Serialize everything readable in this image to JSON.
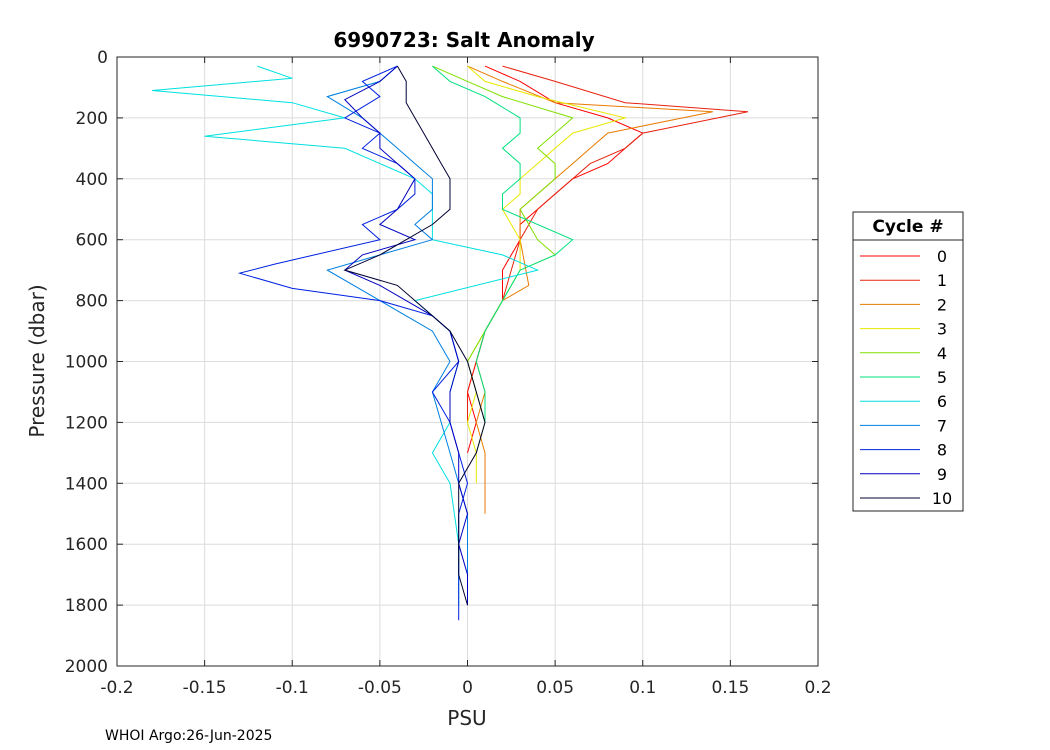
{
  "chart_data": {
    "type": "line",
    "title": "6990723: Salt Anomaly",
    "xlabel": "PSU",
    "ylabel": "Pressure (dbar)",
    "xlim": [
      -0.2,
      0.2
    ],
    "ylim": [
      0,
      2000
    ],
    "y_reversed": true,
    "xticks": [
      "-0.2",
      "-0.15",
      "-0.1",
      "-0.05",
      "0",
      "0.05",
      "0.1",
      "0.15",
      "0.2"
    ],
    "yticks": [
      "0",
      "200",
      "400",
      "600",
      "800",
      "1000",
      "1200",
      "1400",
      "1600",
      "1800",
      "2000"
    ],
    "grid": true,
    "legend": {
      "title": "Cycle #",
      "placement": "right"
    },
    "footer": "WHOI Argo:26-Jun-2025",
    "series": [
      {
        "name": "0",
        "color": "#ff0000",
        "points": [
          [
            0.01,
            30
          ],
          [
            0.03,
            80
          ],
          [
            0.05,
            150
          ],
          [
            0.08,
            200
          ],
          [
            0.1,
            250
          ],
          [
            0.09,
            300
          ],
          [
            0.08,
            350
          ],
          [
            0.06,
            400
          ],
          [
            0.05,
            450
          ],
          [
            0.04,
            500
          ],
          [
            0.03,
            550
          ],
          [
            0.03,
            600
          ],
          [
            0.02,
            700
          ],
          [
            0.02,
            800
          ],
          [
            0.01,
            900
          ],
          [
            0.005,
            1000
          ],
          [
            0.0,
            1100
          ],
          [
            0.005,
            1200
          ],
          [
            0.0,
            1300
          ]
        ]
      },
      {
        "name": "1",
        "color": "#e8220f",
        "points": [
          [
            0.02,
            30
          ],
          [
            0.05,
            80
          ],
          [
            0.09,
            150
          ],
          [
            0.16,
            180
          ],
          [
            0.1,
            250
          ],
          [
            0.09,
            300
          ],
          [
            0.07,
            350
          ],
          [
            0.06,
            400
          ],
          [
            0.05,
            450
          ],
          [
            0.04,
            500
          ],
          [
            0.03,
            600
          ],
          [
            0.025,
            700
          ],
          [
            0.02,
            800
          ],
          [
            0.01,
            900
          ],
          [
            0.005,
            1000
          ],
          [
            0.0,
            1100
          ],
          [
            0.0,
            1200
          ]
        ]
      },
      {
        "name": "2",
        "color": "#e87a00",
        "points": [
          [
            0.0,
            30
          ],
          [
            0.02,
            80
          ],
          [
            0.05,
            150
          ],
          [
            0.14,
            180
          ],
          [
            0.08,
            250
          ],
          [
            0.07,
            300
          ],
          [
            0.06,
            350
          ],
          [
            0.05,
            400
          ],
          [
            0.04,
            450
          ],
          [
            0.03,
            500
          ],
          [
            0.03,
            600
          ],
          [
            0.035,
            750
          ],
          [
            0.02,
            800
          ],
          [
            0.01,
            900
          ],
          [
            0.005,
            1000
          ],
          [
            0.01,
            1100
          ],
          [
            0.005,
            1200
          ],
          [
            0.01,
            1300
          ],
          [
            0.01,
            1400
          ],
          [
            0.01,
            1500
          ]
        ]
      },
      {
        "name": "3",
        "color": "#e8e800",
        "points": [
          [
            0.0,
            30
          ],
          [
            0.01,
            80
          ],
          [
            0.04,
            130
          ],
          [
            0.09,
            200
          ],
          [
            0.06,
            250
          ],
          [
            0.05,
            300
          ],
          [
            0.04,
            350
          ],
          [
            0.03,
            400
          ],
          [
            0.03,
            450
          ],
          [
            0.02,
            500
          ],
          [
            0.03,
            600
          ],
          [
            0.03,
            700
          ],
          [
            0.02,
            800
          ],
          [
            0.01,
            900
          ],
          [
            0.0,
            1000
          ],
          [
            0.005,
            1100
          ],
          [
            0.0,
            1200
          ],
          [
            0.005,
            1300
          ],
          [
            0.005,
            1400
          ]
        ]
      },
      {
        "name": "4",
        "color": "#7fe000",
        "points": [
          [
            -0.02,
            30
          ],
          [
            0.0,
            80
          ],
          [
            0.02,
            130
          ],
          [
            0.06,
            200
          ],
          [
            0.05,
            250
          ],
          [
            0.04,
            300
          ],
          [
            0.05,
            350
          ],
          [
            0.05,
            400
          ],
          [
            0.04,
            450
          ],
          [
            0.03,
            500
          ],
          [
            0.04,
            600
          ],
          [
            0.05,
            650
          ],
          [
            0.03,
            700
          ],
          [
            0.02,
            800
          ],
          [
            0.01,
            900
          ],
          [
            0.0,
            1000
          ],
          [
            0.005,
            1100
          ],
          [
            0.01,
            1200
          ],
          [
            0.005,
            1300
          ]
        ]
      },
      {
        "name": "5",
        "color": "#00e07f",
        "points": [
          [
            -0.02,
            30
          ],
          [
            -0.01,
            80
          ],
          [
            0.01,
            130
          ],
          [
            0.03,
            200
          ],
          [
            0.03,
            250
          ],
          [
            0.02,
            300
          ],
          [
            0.03,
            350
          ],
          [
            0.03,
            400
          ],
          [
            0.02,
            450
          ],
          [
            0.02,
            500
          ],
          [
            0.06,
            600
          ],
          [
            0.05,
            650
          ],
          [
            0.03,
            700
          ],
          [
            0.02,
            800
          ],
          [
            0.01,
            900
          ],
          [
            0.005,
            1000
          ],
          [
            0.01,
            1100
          ],
          [
            0.01,
            1200
          ]
        ]
      },
      {
        "name": "6",
        "color": "#00e0e0",
        "points": [
          [
            -0.12,
            30
          ],
          [
            -0.1,
            70
          ],
          [
            -0.18,
            110
          ],
          [
            -0.1,
            150
          ],
          [
            -0.07,
            200
          ],
          [
            -0.15,
            260
          ],
          [
            -0.07,
            300
          ],
          [
            -0.05,
            350
          ],
          [
            -0.03,
            400
          ],
          [
            -0.02,
            450
          ],
          [
            -0.02,
            500
          ],
          [
            -0.02,
            600
          ],
          [
            0.02,
            650
          ],
          [
            0.04,
            700
          ],
          [
            -0.03,
            800
          ],
          [
            -0.01,
            900
          ],
          [
            -0.005,
            1000
          ],
          [
            -0.01,
            1100
          ],
          [
            -0.01,
            1200
          ],
          [
            -0.02,
            1300
          ],
          [
            -0.01,
            1400
          ],
          [
            -0.005,
            1600
          ],
          [
            -0.005,
            1800
          ]
        ]
      },
      {
        "name": "7",
        "color": "#007fe0",
        "points": [
          [
            -0.04,
            30
          ],
          [
            -0.05,
            80
          ],
          [
            -0.08,
            130
          ],
          [
            -0.06,
            200
          ],
          [
            -0.05,
            250
          ],
          [
            -0.04,
            300
          ],
          [
            -0.03,
            350
          ],
          [
            -0.02,
            400
          ],
          [
            -0.02,
            450
          ],
          [
            -0.02,
            500
          ],
          [
            -0.03,
            550
          ],
          [
            -0.02,
            600
          ],
          [
            -0.05,
            650
          ],
          [
            -0.08,
            700
          ],
          [
            -0.05,
            800
          ],
          [
            -0.02,
            900
          ],
          [
            -0.01,
            1000
          ],
          [
            -0.02,
            1100
          ],
          [
            -0.015,
            1200
          ],
          [
            -0.01,
            1300
          ],
          [
            -0.005,
            1400
          ],
          [
            0.0,
            1500
          ],
          [
            0.0,
            1600
          ],
          [
            0.0,
            1800
          ]
        ]
      },
      {
        "name": "8",
        "color": "#0020e0",
        "points": [
          [
            -0.04,
            30
          ],
          [
            -0.06,
            80
          ],
          [
            -0.05,
            130
          ],
          [
            -0.07,
            200
          ],
          [
            -0.05,
            250
          ],
          [
            -0.06,
            300
          ],
          [
            -0.04,
            350
          ],
          [
            -0.03,
            400
          ],
          [
            -0.03,
            450
          ],
          [
            -0.04,
            500
          ],
          [
            -0.06,
            550
          ],
          [
            -0.05,
            600
          ],
          [
            -0.11,
            680
          ],
          [
            -0.13,
            710
          ],
          [
            -0.1,
            760
          ],
          [
            -0.05,
            800
          ],
          [
            -0.02,
            850
          ],
          [
            -0.01,
            900
          ],
          [
            -0.005,
            1000
          ],
          [
            -0.02,
            1100
          ],
          [
            -0.01,
            1200
          ],
          [
            -0.005,
            1300
          ],
          [
            0.0,
            1400
          ],
          [
            -0.005,
            1500
          ],
          [
            -0.005,
            1600
          ],
          [
            -0.005,
            1700
          ],
          [
            -0.005,
            1850
          ]
        ]
      },
      {
        "name": "9",
        "color": "#0000c0",
        "points": [
          [
            -0.04,
            30
          ],
          [
            -0.05,
            80
          ],
          [
            -0.07,
            140
          ],
          [
            -0.06,
            200
          ],
          [
            -0.05,
            250
          ],
          [
            -0.05,
            300
          ],
          [
            -0.04,
            350
          ],
          [
            -0.03,
            400
          ],
          [
            -0.035,
            450
          ],
          [
            -0.04,
            500
          ],
          [
            -0.05,
            550
          ],
          [
            -0.03,
            600
          ],
          [
            -0.06,
            650
          ],
          [
            -0.07,
            700
          ],
          [
            -0.05,
            750
          ],
          [
            -0.02,
            850
          ],
          [
            -0.01,
            900
          ],
          [
            -0.005,
            1000
          ],
          [
            -0.01,
            1100
          ],
          [
            -0.01,
            1200
          ],
          [
            -0.005,
            1300
          ],
          [
            -0.005,
            1400
          ],
          [
            0.0,
            1500
          ],
          [
            -0.005,
            1600
          ],
          [
            0.0,
            1700
          ],
          [
            0.0,
            1800
          ]
        ]
      },
      {
        "name": "10",
        "color": "#000033",
        "points": [
          [
            -0.04,
            30
          ],
          [
            -0.035,
            80
          ],
          [
            -0.035,
            150
          ],
          [
            -0.03,
            200
          ],
          [
            -0.025,
            250
          ],
          [
            -0.02,
            300
          ],
          [
            -0.015,
            350
          ],
          [
            -0.01,
            400
          ],
          [
            -0.01,
            450
          ],
          [
            -0.01,
            500
          ],
          [
            -0.02,
            550
          ],
          [
            -0.05,
            650
          ],
          [
            -0.07,
            700
          ],
          [
            -0.04,
            750
          ],
          [
            -0.02,
            850
          ],
          [
            -0.01,
            900
          ],
          [
            0.0,
            1000
          ],
          [
            0.005,
            1100
          ],
          [
            0.01,
            1200
          ],
          [
            0.005,
            1300
          ],
          [
            -0.005,
            1400
          ],
          [
            -0.005,
            1500
          ],
          [
            -0.005,
            1600
          ],
          [
            -0.005,
            1700
          ],
          [
            0.0,
            1800
          ]
        ]
      }
    ]
  }
}
